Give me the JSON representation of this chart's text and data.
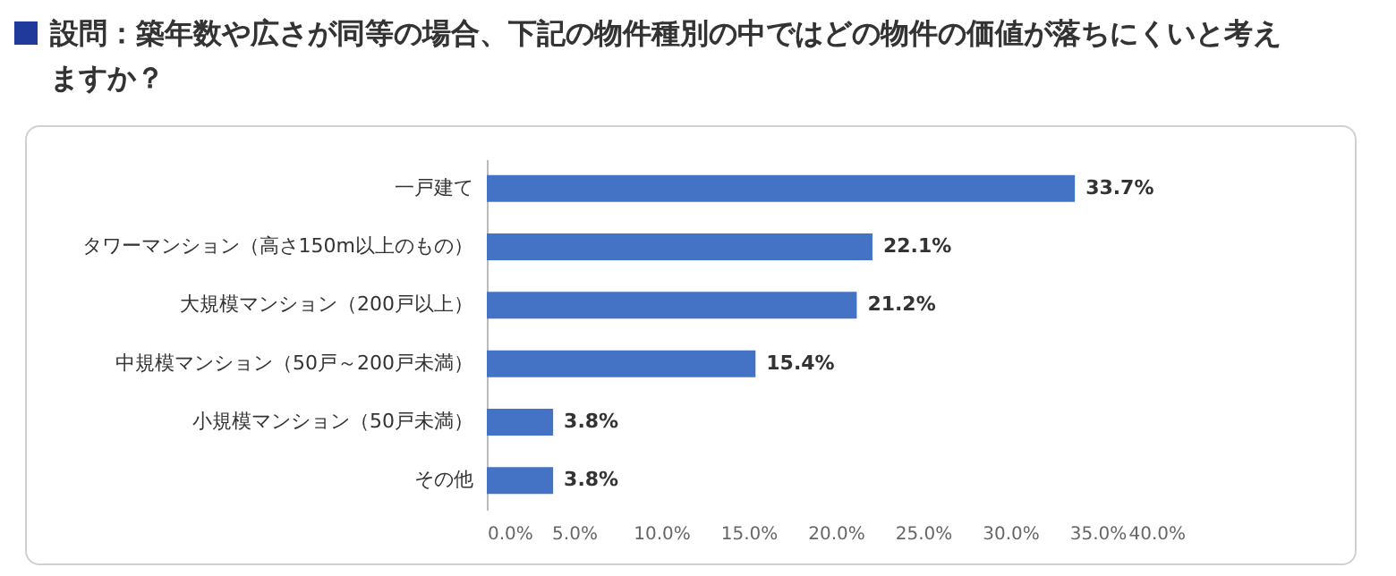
{
  "chart_data": {
    "type": "bar",
    "orientation": "horizontal",
    "title": "設問：築年数や広さが同等の場合、下記の物件種別の中ではどの物件の価値が落ちにくいと考えますか？",
    "categories": [
      "一戸建て",
      "タワーマンション（高さ150m以上のもの）",
      "大規模マンション（200戸以上）",
      "中規模マンション（50戸～200戸未満）",
      "小規模マンション（50戸未満）",
      "その他"
    ],
    "values": [
      33.7,
      22.1,
      21.2,
      15.4,
      3.8,
      3.8
    ],
    "value_labels": [
      "33.7%",
      "22.1%",
      "21.2%",
      "15.4%",
      "3.8%",
      "3.8%"
    ],
    "color": "#4472c4",
    "xlim": [
      0,
      40
    ],
    "xticks": [
      {
        "value": 0,
        "label": "0.0%"
      },
      {
        "value": 5,
        "label": "5.0%"
      },
      {
        "value": 10,
        "label": "10.0%"
      },
      {
        "value": 15,
        "label": "15.0%"
      },
      {
        "value": 20,
        "label": "20.0%"
      },
      {
        "value": 25,
        "label": "25.0%"
      },
      {
        "value": 30,
        "label": "30.0%"
      },
      {
        "value": 35,
        "label": "35.0%"
      },
      {
        "value": 40,
        "label": "40.0%"
      }
    ],
    "grid": false
  }
}
